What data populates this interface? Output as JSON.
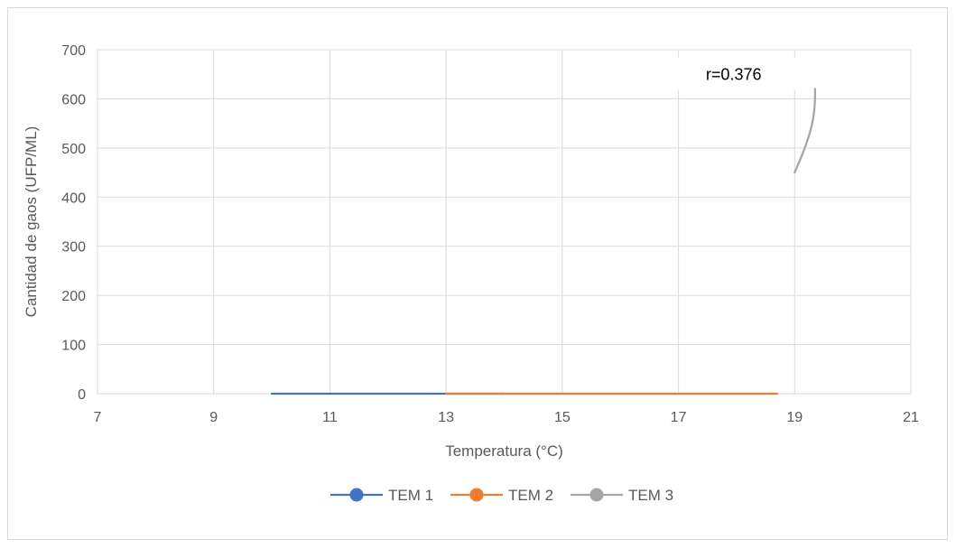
{
  "chart_data": {
    "type": "scatter",
    "title": "",
    "xlabel": "Temperatura (°C)",
    "ylabel": "Cantidad de gaos (UFP/ML)",
    "xlim": [
      7,
      21
    ],
    "ylim": [
      0,
      700
    ],
    "x_ticks": [
      7,
      9,
      11,
      13,
      15,
      17,
      19,
      21
    ],
    "y_ticks": [
      0,
      100,
      200,
      300,
      400,
      500,
      600,
      700
    ],
    "grid": true,
    "legend_position": "bottom",
    "series": [
      {
        "name": "TEM 1",
        "color": "#4472C4",
        "points": [
          [
            10,
            0
          ],
          [
            13,
            0
          ],
          [
            14,
            0
          ]
        ]
      },
      {
        "name": "TEM 2",
        "color": "#ED7D31",
        "points": [
          [
            13,
            0
          ],
          [
            16,
            0
          ],
          [
            18.7,
            0
          ]
        ]
      },
      {
        "name": "TEM 3",
        "color": "#A5A5A5",
        "points": [
          [
            19,
            450
          ],
          [
            19.3,
            530
          ],
          [
            19.35,
            620
          ]
        ]
      }
    ],
    "annotations": [
      {
        "text": "r=0.376",
        "x": 17.95,
        "y": 651
      }
    ]
  }
}
